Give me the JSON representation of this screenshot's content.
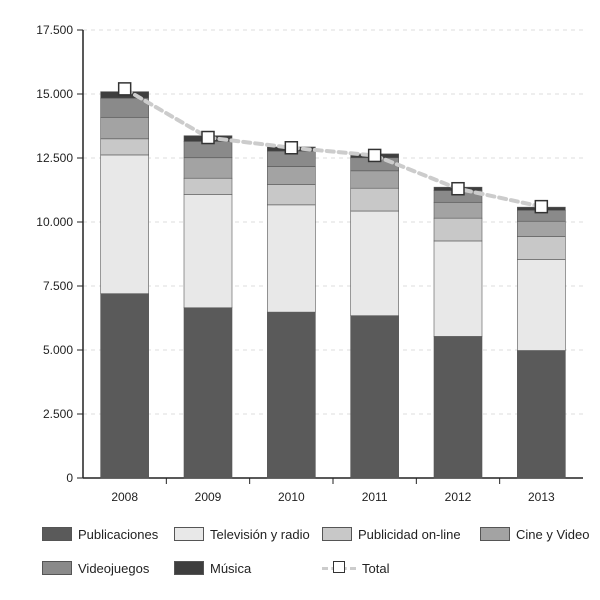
{
  "chart_data": {
    "type": "bar",
    "stacked": true,
    "categories": [
      "2008",
      "2009",
      "2010",
      "2011",
      "2012",
      "2013"
    ],
    "series": [
      {
        "name": "Publicaciones",
        "color": "#5a5a5a",
        "values": [
          7200,
          6650,
          6480,
          6340,
          5530,
          4980
        ]
      },
      {
        "name": "Televisión y radio",
        "color": "#e8e8e8",
        "values": [
          5420,
          4420,
          4190,
          4090,
          3730,
          3560
        ]
      },
      {
        "name": "Publicidad on-line",
        "color": "#c8c8c8",
        "values": [
          630,
          640,
          790,
          890,
          890,
          890
        ]
      },
      {
        "name": "Cine y Video",
        "color": "#a3a3a3",
        "values": [
          840,
          800,
          710,
          680,
          620,
          600
        ]
      },
      {
        "name": "Videojuegos",
        "color": "#8a8a8a",
        "values": [
          750,
          640,
          600,
          510,
          460,
          430
        ]
      },
      {
        "name": "Música",
        "color": "#3e3e3e",
        "values": [
          250,
          220,
          160,
          150,
          130,
          120
        ]
      }
    ],
    "total": {
      "name": "Total",
      "values": [
        15200,
        13300,
        12900,
        12600,
        11300,
        10600
      ]
    },
    "yaxis": {
      "ylim": [
        0,
        17500
      ],
      "ticks": [
        "0",
        "2.500",
        "5.000",
        "7.500",
        "10.000",
        "12.500",
        "15.000",
        "17.500"
      ],
      "tick_values": [
        0,
        2500,
        5000,
        7500,
        10000,
        12500,
        15000,
        17500
      ]
    },
    "grid": "horizontal dashed",
    "legend_position": "bottom",
    "title": "",
    "xlabel": "",
    "ylabel": ""
  },
  "legend": {
    "rows": [
      [
        "Publicaciones",
        "Televisión y radio",
        "Publicidad on-line",
        "Cine y Video"
      ],
      [
        "Videojuegos",
        "Música",
        "Total"
      ]
    ]
  }
}
